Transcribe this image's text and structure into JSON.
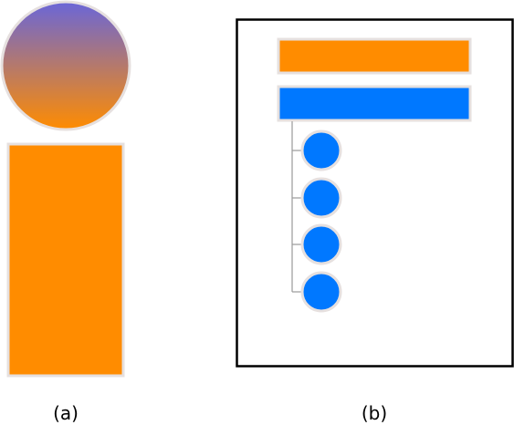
{
  "panels": [
    {
      "caption": "(a)"
    },
    {
      "caption": "(b)"
    }
  ],
  "colors": {
    "orange": "#ff8c00",
    "blue": "#0078ff",
    "purple": "#6a66d8",
    "outline": "#e6e0df",
    "frame": "#000000",
    "connector": "#9a9a9a"
  },
  "panel_b": {
    "bar_count": 2,
    "circle_count": 4
  }
}
